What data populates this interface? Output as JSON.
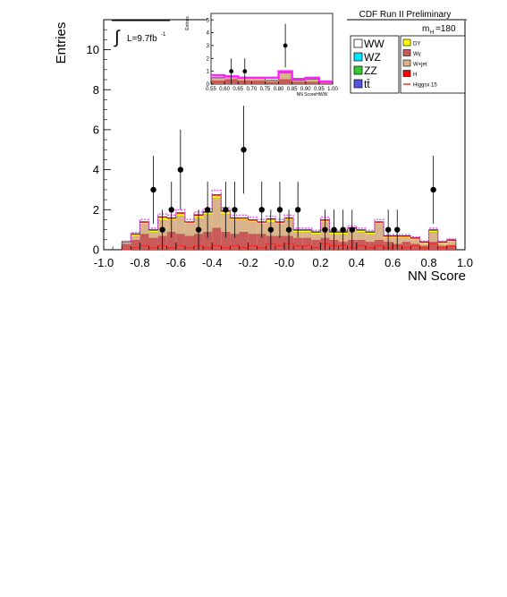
{
  "header": {
    "title": "CDF Run II Preliminary",
    "mass_label": "m",
    "mass_sub": "H",
    "mass_value": "=180"
  },
  "luminosity": {
    "symbol": "∫",
    "text": "L=9.7fb",
    "sup": "-1"
  },
  "chart_data": [
    {
      "type": "bar",
      "role": "main",
      "xlabel": "NN Score",
      "ylabel": "Entries",
      "xlim": [
        -1.0,
        1.0
      ],
      "ylim": [
        0,
        11.5
      ],
      "x_ticks": [
        -1.0,
        -0.8,
        -0.6,
        -0.4,
        -0.2,
        0.0,
        0.2,
        0.4,
        0.6,
        0.8,
        1.0
      ],
      "x_tick_labels": [
        "-1.0",
        "-0.8",
        "-0.6",
        "-0.4",
        "-0.2",
        "-0.0",
        "0.2",
        "0.4",
        "0.6",
        "0.8",
        "1.0"
      ],
      "y_ticks": [
        0,
        2,
        4,
        6,
        8,
        10
      ],
      "y_tick_labels": [
        "0",
        "2",
        "4",
        "6",
        "8",
        "10"
      ],
      "bin_edges": [
        -0.9,
        -0.85,
        -0.8,
        -0.75,
        -0.7,
        -0.65,
        -0.6,
        -0.55,
        -0.5,
        -0.45,
        -0.4,
        -0.35,
        -0.3,
        -0.25,
        -0.2,
        -0.15,
        -0.1,
        -0.05,
        0.0,
        0.05,
        0.1,
        0.15,
        0.2,
        0.25,
        0.3,
        0.35,
        0.4,
        0.45,
        0.5,
        0.55,
        0.6,
        0.65,
        0.7,
        0.75,
        0.8,
        0.85,
        0.9,
        0.95
      ],
      "series": [
        {
          "name": "Wγ",
          "color": "#c85a5a",
          "values": [
            0.3,
            0.5,
            0.8,
            0.6,
            0.7,
            0.9,
            0.8,
            0.7,
            0.8,
            0.9,
            1.1,
            0.9,
            0.8,
            0.9,
            0.8,
            0.8,
            0.7,
            0.7,
            0.7,
            0.6,
            0.6,
            0.5,
            0.6,
            0.5,
            0.4,
            0.5,
            0.5,
            0.4,
            0.5,
            0.4,
            0.3,
            0.4,
            0.3,
            0.2,
            0.4,
            0.2,
            0.2
          ]
        },
        {
          "name": "W+jet",
          "color": "#d9b48a",
          "values": [
            0.1,
            0.2,
            0.5,
            0.3,
            0.8,
            0.6,
            0.9,
            0.6,
            0.8,
            0.9,
            1.5,
            0.9,
            0.7,
            0.6,
            0.6,
            0.5,
            0.7,
            0.6,
            0.8,
            0.3,
            0.3,
            0.3,
            0.8,
            0.3,
            0.4,
            0.5,
            0.4,
            0.4,
            0.8,
            0.2,
            0.3,
            0.2,
            0.2,
            0.1,
            0.5,
            0.1,
            0.2
          ]
        },
        {
          "name": "DY",
          "color": "#ffff00",
          "values": [
            0.0,
            0.05,
            0.05,
            0.05,
            0.1,
            0.05,
            0.1,
            0.05,
            0.1,
            0.05,
            0.1,
            0.1,
            0.05,
            0.05,
            0.05,
            0.05,
            0.1,
            0.05,
            0.05,
            0.05,
            0.05,
            0.05,
            0.05,
            0.05,
            0.05,
            0.05,
            0.05,
            0.05,
            0.05,
            0.05,
            0.05,
            0.05,
            0.05,
            0.05,
            0.05,
            0.05,
            0.05
          ]
        },
        {
          "name": "H",
          "color": "#ff0000",
          "values": [
            0.0,
            0.05,
            0.05,
            0.05,
            0.05,
            0.05,
            0.05,
            0.05,
            0.05,
            0.05,
            0.05,
            0.05,
            0.05,
            0.05,
            0.05,
            0.05,
            0.05,
            0.05,
            0.05,
            0.05,
            0.05,
            0.05,
            0.05,
            0.05,
            0.05,
            0.05,
            0.05,
            0.05,
            0.05,
            0.05,
            0.05,
            0.05,
            0.05,
            0.05,
            0.05,
            0.05,
            0.05
          ]
        }
      ],
      "data_points": [
        {
          "x": -0.725,
          "y": 3,
          "err": 1.7
        },
        {
          "x": -0.675,
          "y": 1,
          "err": 1.0
        },
        {
          "x": -0.625,
          "y": 2,
          "err": 1.4
        },
        {
          "x": -0.575,
          "y": 4,
          "err": 2.0
        },
        {
          "x": -0.475,
          "y": 1,
          "err": 1.0
        },
        {
          "x": -0.425,
          "y": 2,
          "err": 1.4
        },
        {
          "x": -0.325,
          "y": 2,
          "err": 1.4
        },
        {
          "x": -0.275,
          "y": 2,
          "err": 1.4
        },
        {
          "x": -0.225,
          "y": 5,
          "err": 2.2
        },
        {
          "x": -0.125,
          "y": 2,
          "err": 1.4
        },
        {
          "x": -0.075,
          "y": 1,
          "err": 1.0
        },
        {
          "x": -0.025,
          "y": 2,
          "err": 1.4
        },
        {
          "x": 0.025,
          "y": 1,
          "err": 1.0
        },
        {
          "x": 0.075,
          "y": 2,
          "err": 1.4
        },
        {
          "x": 0.225,
          "y": 1,
          "err": 1.0
        },
        {
          "x": 0.275,
          "y": 1,
          "err": 1.0
        },
        {
          "x": 0.325,
          "y": 1,
          "err": 1.0
        },
        {
          "x": 0.375,
          "y": 1,
          "err": 1.0
        },
        {
          "x": 0.575,
          "y": 1,
          "err": 1.0
        },
        {
          "x": 0.625,
          "y": 1,
          "err": 1.0
        },
        {
          "x": 0.825,
          "y": 3,
          "err": 1.7
        }
      ],
      "signal_x15": [
        0.0,
        0.1,
        0.2,
        0.1,
        0.2,
        0.1,
        0.2,
        0.1,
        0.2,
        0.1,
        0.2,
        0.1,
        0.2,
        0.1,
        0.2,
        0.1,
        0.3,
        0.2,
        0.3,
        0.2,
        0.2,
        0.1,
        0.3,
        0.2,
        0.2,
        0.1,
        0.2,
        0.1,
        0.2,
        0.1,
        0.2,
        0.1,
        0.2,
        0.1,
        0.3,
        0.1,
        0.2
      ]
    },
    {
      "type": "bar",
      "role": "inset",
      "xlabel": "NN ScoreHWW",
      "ylabel": "Entries",
      "xlim": [
        0.55,
        1.0
      ],
      "ylim": [
        0,
        5.5
      ],
      "x_ticks": [
        0.55,
        0.6,
        0.65,
        0.7,
        0.75,
        0.8,
        0.85,
        0.9,
        0.95,
        1.0
      ],
      "x_tick_labels": [
        "0.55",
        "0.60",
        "0.65",
        "0.70",
        "0.75",
        "0.80",
        "0.85",
        "0.90",
        "0.95",
        "1.00"
      ],
      "y_ticks": [
        0,
        1,
        2,
        3,
        4,
        5
      ],
      "y_tick_labels": [
        "0",
        "1",
        "2",
        "3",
        "4",
        "5"
      ],
      "bin_edges": [
        0.55,
        0.6,
        0.65,
        0.7,
        0.75,
        0.8,
        0.85,
        0.9,
        0.95,
        1.0
      ],
      "series": [
        {
          "name": "Wγ",
          "color": "#c85a5a",
          "values": [
            0.3,
            0.4,
            0.3,
            0.3,
            0.2,
            0.4,
            0.2,
            0.2,
            0.1
          ]
        },
        {
          "name": "W+jet",
          "color": "#d9b48a",
          "values": [
            0.2,
            0.2,
            0.2,
            0.2,
            0.1,
            0.5,
            0.1,
            0.2,
            0.1
          ]
        }
      ],
      "signal_x15": [
        0.7,
        0.6,
        0.5,
        0.5,
        0.5,
        1.0,
        0.4,
        0.5,
        0.2
      ],
      "data_points": [
        {
          "x": 0.625,
          "y": 1,
          "err": 1.0
        },
        {
          "x": 0.675,
          "y": 1,
          "err": 1.0
        },
        {
          "x": 0.825,
          "y": 3,
          "err": 1.7
        }
      ]
    }
  ],
  "legend": {
    "left": [
      {
        "label": "WW",
        "color": "#ffffff"
      },
      {
        "label": "WZ",
        "color": "#00e5ff"
      },
      {
        "label": "ZZ",
        "color": "#33cc33"
      },
      {
        "label": "tt̄",
        "color": "#5555dd"
      }
    ],
    "right": [
      {
        "label": "DY",
        "color": "#ffff00"
      },
      {
        "label": "Wγ",
        "color": "#c85a5a"
      },
      {
        "label": "W+jet",
        "color": "#d9b48a"
      },
      {
        "label": "H",
        "color": "#ff0000"
      },
      {
        "label": "Higgsx 15",
        "color": "#e8322a"
      }
    ]
  },
  "colors": {
    "band": "#ee55ee",
    "signal": "#e8322a",
    "data": "#000000"
  }
}
